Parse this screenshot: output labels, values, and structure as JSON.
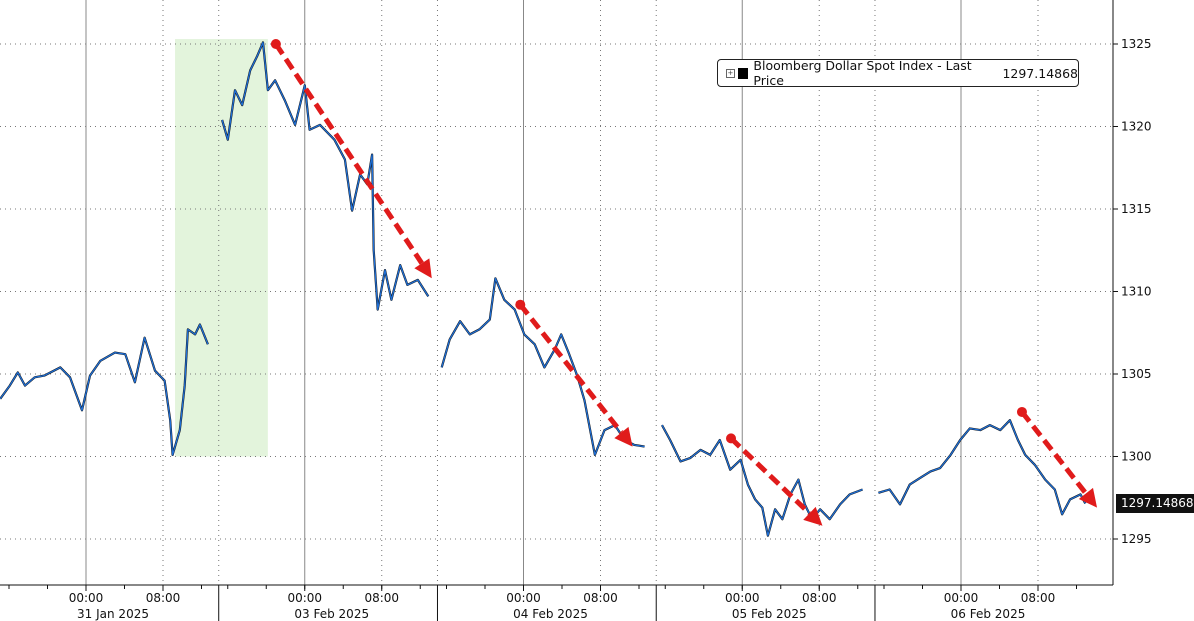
{
  "chart_data": {
    "type": "line",
    "title": "",
    "xlabel": "",
    "ylabel": "",
    "ylim": [
      1292.5,
      1327.5
    ],
    "yticks": [
      1295,
      1300,
      1305,
      1310,
      1315,
      1320,
      1325
    ],
    "grid": true,
    "legend_placement": "top-right",
    "y_axis_side": "right",
    "sessions": [
      "2025-01-31",
      "2025-02-03",
      "2025-02-04",
      "2025-02-05",
      "2025-02-06"
    ],
    "session_labels": [
      "31 Jan 2025",
      "03 Feb 2025",
      "04 Feb 2025",
      "05 Feb 2025",
      "06 Feb 2025"
    ],
    "xtick_labels": [
      "00:00",
      "08:00"
    ],
    "series": [
      {
        "name": "Bloomberg Dollar Spot Index - Last Price",
        "last_value": "1297.14868",
        "color": "#1f6fd6",
        "points": [
          [
            "2025-01-30 15:05",
            1303.5
          ],
          [
            "2025-01-30 16:05",
            1304.3
          ],
          [
            "2025-01-30 16:55",
            1305.1
          ],
          [
            "2025-01-30 17:40",
            1304.3
          ],
          [
            "2025-01-30 18:40",
            1304.8
          ],
          [
            "2025-01-30 19:40",
            1304.9
          ],
          [
            "2025-01-30 21:20",
            1305.4
          ],
          [
            "2025-01-30 22:20",
            1304.8
          ],
          [
            "2025-01-30 23:35",
            1302.8
          ],
          [
            "2025-01-31 00:25",
            1304.9
          ],
          [
            "2025-01-31 01:30",
            1305.8
          ],
          [
            "2025-01-31 03:00",
            1306.3
          ],
          [
            "2025-01-31 04:05",
            1306.2
          ],
          [
            "2025-01-31 05:05",
            1304.5
          ],
          [
            "2025-01-31 06:05",
            1307.2
          ],
          [
            "2025-01-31 07:10",
            1305.2
          ],
          [
            "2025-01-31 08:10",
            1304.6
          ],
          [
            "2025-01-31 08:45",
            1302.2
          ],
          [
            "2025-01-31 09:00",
            1300.1
          ],
          [
            "2025-01-31 09:45",
            1301.6
          ],
          [
            "2025-01-31 10:15",
            1304.3
          ],
          [
            "2025-01-31 10:35",
            1307.7
          ],
          [
            "2025-01-31 11:20",
            1307.4
          ],
          [
            "2025-01-31 11:50",
            1308.0
          ],
          [
            "2025-01-31 12:40",
            1306.8
          ],
          [
            "2025-02-02 15:25",
            1320.4
          ],
          [
            "2025-02-02 16:00",
            1319.2
          ],
          [
            "2025-02-02 16:45",
            1322.2
          ],
          [
            "2025-02-02 17:30",
            1321.3
          ],
          [
            "2025-02-02 18:20",
            1323.4
          ],
          [
            "2025-02-02 19:05",
            1324.3
          ],
          [
            "2025-02-02 19:40",
            1325.1
          ],
          [
            "2025-02-02 20:10",
            1322.2
          ],
          [
            "2025-02-02 20:55",
            1322.8
          ],
          [
            "2025-02-02 21:55",
            1321.6
          ],
          [
            "2025-02-02 23:00",
            1320.1
          ],
          [
            "2025-02-03 00:00",
            1322.5
          ],
          [
            "2025-02-03 00:30",
            1319.8
          ],
          [
            "2025-02-03 01:35",
            1320.1
          ],
          [
            "2025-02-03 03:05",
            1319.2
          ],
          [
            "2025-02-03 04:10",
            1318.0
          ],
          [
            "2025-02-03 04:55",
            1314.9
          ],
          [
            "2025-02-03 05:45",
            1317.1
          ],
          [
            "2025-02-03 06:30",
            1316.5
          ],
          [
            "2025-02-03 07:00",
            1318.3
          ],
          [
            "2025-02-03 07:10",
            1312.5
          ],
          [
            "2025-02-03 07:35",
            1308.9
          ],
          [
            "2025-02-03 08:20",
            1311.3
          ],
          [
            "2025-02-03 09:00",
            1309.5
          ],
          [
            "2025-02-03 09:55",
            1311.6
          ],
          [
            "2025-02-03 10:40",
            1310.4
          ],
          [
            "2025-02-03 11:45",
            1310.7
          ],
          [
            "2025-02-03 12:50",
            1309.7
          ],
          [
            "2025-02-03 15:30",
            1305.4
          ],
          [
            "2025-02-03 16:20",
            1307.1
          ],
          [
            "2025-02-03 17:25",
            1308.2
          ],
          [
            "2025-02-03 18:25",
            1307.4
          ],
          [
            "2025-02-03 19:25",
            1307.7
          ],
          [
            "2025-02-03 20:30",
            1308.3
          ],
          [
            "2025-02-03 21:05",
            1310.8
          ],
          [
            "2025-02-03 22:00",
            1309.5
          ],
          [
            "2025-02-03 23:05",
            1308.9
          ],
          [
            "2025-02-04 00:05",
            1307.4
          ],
          [
            "2025-02-04 01:10",
            1306.8
          ],
          [
            "2025-02-04 02:10",
            1305.4
          ],
          [
            "2025-02-04 03:15",
            1306.5
          ],
          [
            "2025-02-04 03:55",
            1307.4
          ],
          [
            "2025-02-04 04:45",
            1306.2
          ],
          [
            "2025-02-04 05:35",
            1304.9
          ],
          [
            "2025-02-04 06:20",
            1303.4
          ],
          [
            "2025-02-04 07:25",
            1300.1
          ],
          [
            "2025-02-04 08:25",
            1301.6
          ],
          [
            "2025-02-04 09:30",
            1301.9
          ],
          [
            "2025-02-04 10:30",
            1301.0
          ],
          [
            "2025-02-04 11:30",
            1300.7
          ],
          [
            "2025-02-04 12:35",
            1300.6
          ],
          [
            "2025-02-04 15:40",
            1301.9
          ],
          [
            "2025-02-04 16:30",
            1301.0
          ],
          [
            "2025-02-04 17:35",
            1299.7
          ],
          [
            "2025-02-04 18:35",
            1299.9
          ],
          [
            "2025-02-04 19:40",
            1300.4
          ],
          [
            "2025-02-04 20:40",
            1300.1
          ],
          [
            "2025-02-04 21:40",
            1301.0
          ],
          [
            "2025-02-04 22:45",
            1299.2
          ],
          [
            "2025-02-04 23:50",
            1299.8
          ],
          [
            "2025-02-05 00:35",
            1298.3
          ],
          [
            "2025-02-05 01:20",
            1297.4
          ],
          [
            "2025-02-05 02:05",
            1296.9
          ],
          [
            "2025-02-05 02:40",
            1295.2
          ],
          [
            "2025-02-05 03:25",
            1296.8
          ],
          [
            "2025-02-05 04:10",
            1296.2
          ],
          [
            "2025-02-05 05:00",
            1297.7
          ],
          [
            "2025-02-05 05:50",
            1298.6
          ],
          [
            "2025-02-05 06:30",
            1297.1
          ],
          [
            "2025-02-05 07:15",
            1296.2
          ],
          [
            "2025-02-05 08:05",
            1296.8
          ],
          [
            "2025-02-05 09:05",
            1296.2
          ],
          [
            "2025-02-05 10:10",
            1297.1
          ],
          [
            "2025-02-05 11:10",
            1297.7
          ],
          [
            "2025-02-05 12:30",
            1298.0
          ],
          [
            "2025-02-05 15:25",
            1297.8
          ],
          [
            "2025-02-05 16:35",
            1298.0
          ],
          [
            "2025-02-05 17:40",
            1297.1
          ],
          [
            "2025-02-05 18:40",
            1298.3
          ],
          [
            "2025-02-05 19:45",
            1298.7
          ],
          [
            "2025-02-05 20:50",
            1299.1
          ],
          [
            "2025-02-05 21:50",
            1299.3
          ],
          [
            "2025-02-05 22:55",
            1300.1
          ],
          [
            "2025-02-05 23:55",
            1301.0
          ],
          [
            "2025-02-06 00:55",
            1301.7
          ],
          [
            "2025-02-06 02:00",
            1301.6
          ],
          [
            "2025-02-06 03:00",
            1301.9
          ],
          [
            "2025-02-06 04:05",
            1301.6
          ],
          [
            "2025-02-06 05:05",
            1302.2
          ],
          [
            "2025-02-06 05:55",
            1301.0
          ],
          [
            "2025-02-06 06:40",
            1300.1
          ],
          [
            "2025-02-06 07:40",
            1299.5
          ],
          [
            "2025-02-06 08:45",
            1298.6
          ],
          [
            "2025-02-06 09:45",
            1298.0
          ],
          [
            "2025-02-06 10:30",
            1296.5
          ],
          [
            "2025-02-06 11:20",
            1297.4
          ],
          [
            "2025-02-06 12:25",
            1297.7
          ],
          [
            "2025-02-06 12:55",
            1297.15
          ]
        ]
      }
    ],
    "highlight_region": {
      "x": [
        "2025-01-31 09:15",
        "2025-02-02 20:10"
      ],
      "y": [
        1300,
        1325.3
      ],
      "color": "#e3f4dc"
    },
    "annotations": {
      "arrow_color": "#e01b1b",
      "arrows": [
        {
          "from": [
            "2025-02-02 21:00",
            1325.0
          ],
          "to": [
            "2025-02-03 13:12",
            1310.8
          ]
        },
        {
          "from": [
            "2025-02-03 23:40",
            1309.2
          ],
          "to": [
            "2025-02-04 11:20",
            1300.6
          ]
        },
        {
          "from": [
            "2025-02-04 22:50",
            1301.1
          ],
          "to": [
            "2025-02-05 08:20",
            1295.8
          ]
        },
        {
          "from": [
            "2025-02-06 06:20",
            1302.7
          ],
          "to": [
            "2025-02-06 14:08",
            1296.9
          ]
        }
      ]
    }
  }
}
